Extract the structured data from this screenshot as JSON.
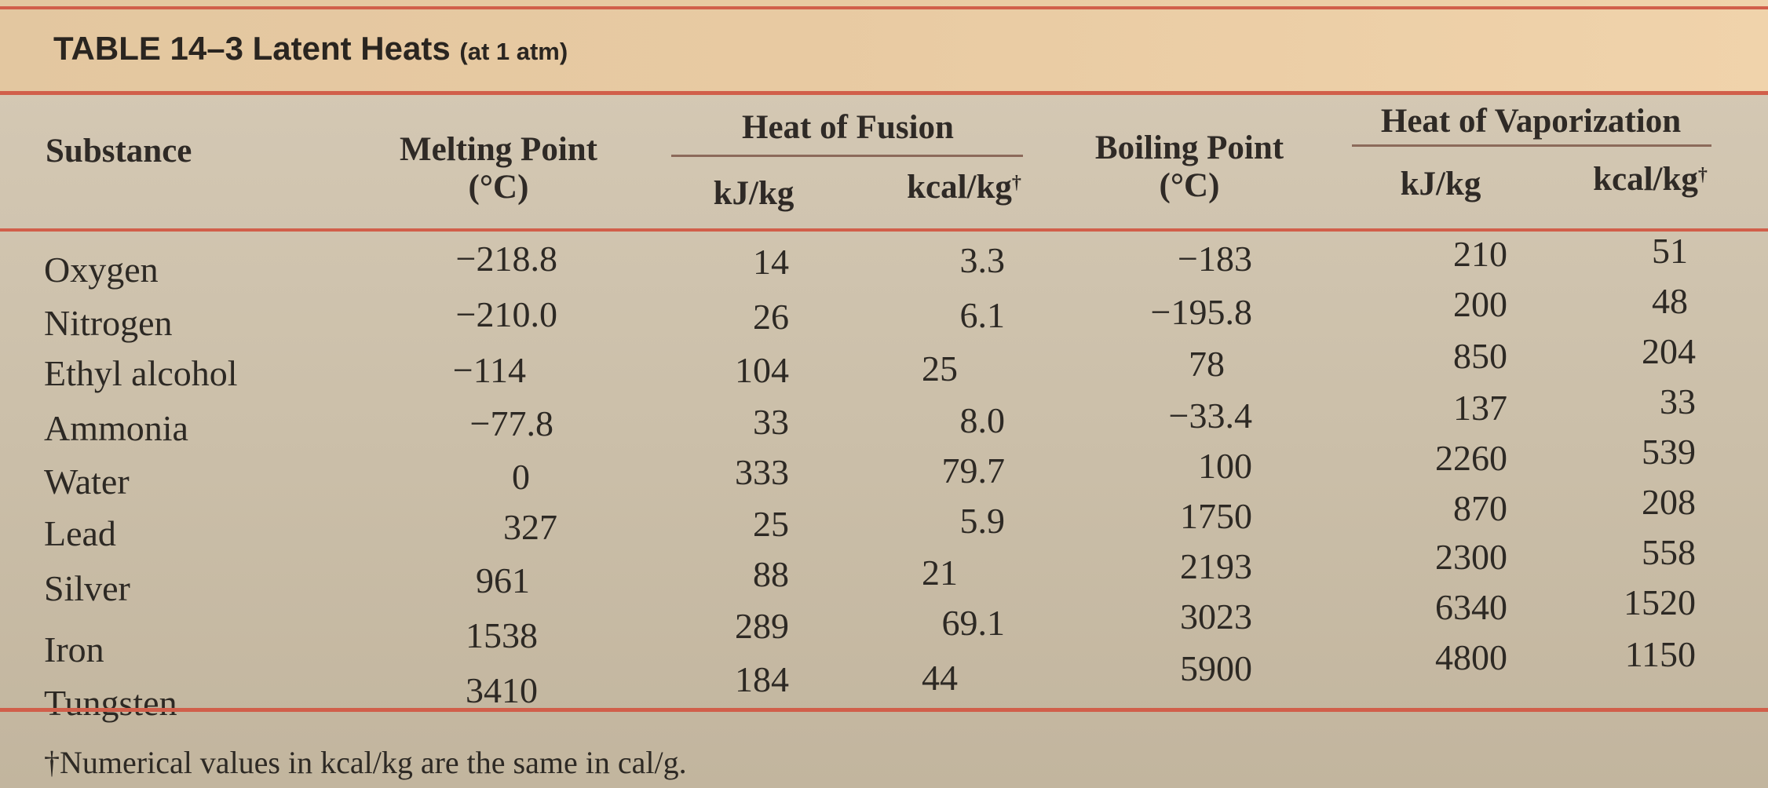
{
  "table": {
    "title_main": "TABLE 14–3 Latent Heats",
    "title_sub": "(at 1 atm)",
    "headers": {
      "substance": "Substance",
      "melting_point": "Melting Point",
      "melting_unit": "(°C)",
      "heat_of_fusion": "Heat of Fusion",
      "fusion_kj": "kJ/kg",
      "fusion_kcal": "kcal/kg",
      "boiling_point": "Boiling Point",
      "boiling_unit": "(°C)",
      "heat_of_vaporization": "Heat of Vaporization",
      "vap_kj": "kJ/kg",
      "vap_kcal": "kcal/kg",
      "dagger": "†"
    },
    "rows": [
      {
        "substance": "Oxygen",
        "melting": "−218.8",
        "fusion_kj": "14",
        "fusion_kcal": "3.3",
        "boiling": "−183",
        "vap_kj": "210",
        "vap_kcal": "51"
      },
      {
        "substance": "Nitrogen",
        "melting": "−210.0",
        "fusion_kj": "26",
        "fusion_kcal": "6.1",
        "boiling": "−195.8",
        "vap_kj": "200",
        "vap_kcal": "48"
      },
      {
        "substance": "Ethyl alcohol",
        "melting": "−114",
        "fusion_kj": "104",
        "fusion_kcal": "25",
        "boiling": "78",
        "vap_kj": "850",
        "vap_kcal": "204"
      },
      {
        "substance": "Ammonia",
        "melting": "−77.8",
        "fusion_kj": "33",
        "fusion_kcal": "8.0",
        "boiling": "−33.4",
        "vap_kj": "137",
        "vap_kcal": "33"
      },
      {
        "substance": "Water",
        "melting": "0",
        "fusion_kj": "333",
        "fusion_kcal": "79.7",
        "boiling": "100",
        "vap_kj": "2260",
        "vap_kcal": "539"
      },
      {
        "substance": "Lead",
        "melting": "327",
        "fusion_kj": "25",
        "fusion_kcal": "5.9",
        "boiling": "1750",
        "vap_kj": "870",
        "vap_kcal": "208"
      },
      {
        "substance": "Silver",
        "melting": "961",
        "fusion_kj": "88",
        "fusion_kcal": "21",
        "boiling": "2193",
        "vap_kj": "2300",
        "vap_kcal": "558"
      },
      {
        "substance": "Iron",
        "melting": "1538",
        "fusion_kj": "289",
        "fusion_kcal": "69.1",
        "boiling": "3023",
        "vap_kj": "6340",
        "vap_kcal": "1520"
      },
      {
        "substance": "Tungsten",
        "melting": "3410",
        "fusion_kj": "184",
        "fusion_kcal": "44",
        "boiling": "5900",
        "vap_kj": "4800",
        "vap_kcal": "1150"
      }
    ],
    "footnote": "†Numerical values in kcal/kg are the same in cal/g."
  }
}
